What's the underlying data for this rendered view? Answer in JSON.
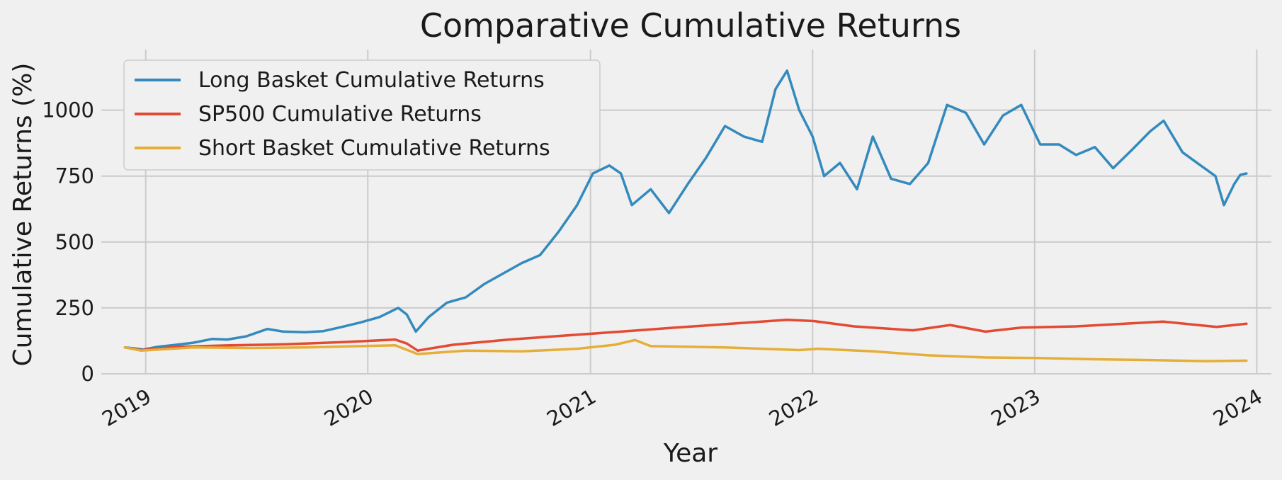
{
  "chart_data": {
    "type": "line",
    "title": "Comparative Cumulative Returns",
    "xlabel": "Year",
    "ylabel": "Cumulative Returns (%)",
    "x_ticks": [
      "2019",
      "2020",
      "2021",
      "2022",
      "2023",
      "2024"
    ],
    "y_ticks": [
      0,
      250,
      500,
      750,
      1000
    ],
    "xlim": [
      "2018-10-20",
      "2024-01-25"
    ],
    "ylim": [
      0,
      1230
    ],
    "grid": true,
    "legend_position": "top-left",
    "series": [
      {
        "name": "Long Basket Cumulative Returns",
        "color": "#348ABD",
        "points": [
          [
            "2018-11-28",
            100
          ],
          [
            "2018-12-15",
            96
          ],
          [
            "2018-12-28",
            92
          ],
          [
            "2019-01-20",
            102
          ],
          [
            "2019-02-20",
            110
          ],
          [
            "2019-03-20",
            118
          ],
          [
            "2019-04-20",
            132
          ],
          [
            "2019-05-15",
            130
          ],
          [
            "2019-06-15",
            142
          ],
          [
            "2019-07-20",
            170
          ],
          [
            "2019-08-15",
            160
          ],
          [
            "2019-09-20",
            158
          ],
          [
            "2019-10-20",
            162
          ],
          [
            "2019-11-20",
            178
          ],
          [
            "2019-12-20",
            195
          ],
          [
            "2020-01-20",
            215
          ],
          [
            "2020-02-20",
            250
          ],
          [
            "2020-03-05",
            225
          ],
          [
            "2020-03-20",
            160
          ],
          [
            "2020-04-10",
            215
          ],
          [
            "2020-05-10",
            270
          ],
          [
            "2020-06-10",
            290
          ],
          [
            "2020-07-10",
            340
          ],
          [
            "2020-08-10",
            380
          ],
          [
            "2020-09-10",
            420
          ],
          [
            "2020-10-10",
            450
          ],
          [
            "2020-11-10",
            540
          ],
          [
            "2020-12-10",
            640
          ],
          [
            "2021-01-05",
            760
          ],
          [
            "2021-02-01",
            790
          ],
          [
            "2021-02-20",
            760
          ],
          [
            "2021-03-10",
            640
          ],
          [
            "2021-04-10",
            700
          ],
          [
            "2021-05-10",
            610
          ],
          [
            "2021-06-10",
            720
          ],
          [
            "2021-07-10",
            820
          ],
          [
            "2021-08-10",
            940
          ],
          [
            "2021-09-10",
            900
          ],
          [
            "2021-10-10",
            880
          ],
          [
            "2021-11-01",
            1080
          ],
          [
            "2021-11-20",
            1150
          ],
          [
            "2021-12-10",
            1000
          ],
          [
            "2022-01-01",
            900
          ],
          [
            "2022-01-20",
            750
          ],
          [
            "2022-02-15",
            800
          ],
          [
            "2022-03-15",
            700
          ],
          [
            "2022-04-10",
            900
          ],
          [
            "2022-05-10",
            740
          ],
          [
            "2022-06-10",
            720
          ],
          [
            "2022-07-10",
            800
          ],
          [
            "2022-08-10",
            1020
          ],
          [
            "2022-09-10",
            990
          ],
          [
            "2022-10-10",
            870
          ],
          [
            "2022-11-10",
            980
          ],
          [
            "2022-12-10",
            1020
          ],
          [
            "2023-01-10",
            870
          ],
          [
            "2023-02-10",
            870
          ],
          [
            "2023-03-10",
            830
          ],
          [
            "2023-04-10",
            860
          ],
          [
            "2023-05-10",
            780
          ],
          [
            "2023-06-10",
            850
          ],
          [
            "2023-07-10",
            920
          ],
          [
            "2023-08-01",
            960
          ],
          [
            "2023-09-01",
            840
          ],
          [
            "2023-10-01",
            790
          ],
          [
            "2023-10-25",
            750
          ],
          [
            "2023-11-08",
            640
          ],
          [
            "2023-11-25",
            720
          ],
          [
            "2023-12-05",
            755
          ],
          [
            "2023-12-15",
            760
          ]
        ]
      },
      {
        "name": "SP500 Cumulative Returns",
        "color": "#E24A33",
        "points": [
          [
            "2018-11-28",
            100
          ],
          [
            "2018-12-24",
            90
          ],
          [
            "2019-02-20",
            102
          ],
          [
            "2019-05-20",
            108
          ],
          [
            "2019-08-20",
            112
          ],
          [
            "2019-11-20",
            120
          ],
          [
            "2020-02-15",
            130
          ],
          [
            "2020-03-05",
            115
          ],
          [
            "2020-03-23",
            88
          ],
          [
            "2020-05-20",
            110
          ],
          [
            "2020-08-20",
            130
          ],
          [
            "2020-11-20",
            145
          ],
          [
            "2021-02-20",
            160
          ],
          [
            "2021-05-20",
            175
          ],
          [
            "2021-08-20",
            190
          ],
          [
            "2021-11-20",
            205
          ],
          [
            "2022-01-03",
            200
          ],
          [
            "2022-03-10",
            180
          ],
          [
            "2022-06-15",
            165
          ],
          [
            "2022-08-15",
            185
          ],
          [
            "2022-10-12",
            160
          ],
          [
            "2022-12-10",
            175
          ],
          [
            "2023-03-10",
            180
          ],
          [
            "2023-07-31",
            198
          ],
          [
            "2023-10-27",
            178
          ],
          [
            "2023-12-15",
            190
          ]
        ]
      },
      {
        "name": "Short Basket Cumulative Returns",
        "color": "#E5AE38",
        "points": [
          [
            "2018-11-28",
            100
          ],
          [
            "2018-12-24",
            88
          ],
          [
            "2019-03-20",
            100
          ],
          [
            "2019-06-20",
            98
          ],
          [
            "2019-09-20",
            100
          ],
          [
            "2019-12-20",
            105
          ],
          [
            "2020-02-15",
            108
          ],
          [
            "2020-03-23",
            75
          ],
          [
            "2020-06-10",
            88
          ],
          [
            "2020-09-10",
            85
          ],
          [
            "2020-12-10",
            95
          ],
          [
            "2021-02-10",
            110
          ],
          [
            "2021-03-15",
            128
          ],
          [
            "2021-04-10",
            105
          ],
          [
            "2021-08-10",
            100
          ],
          [
            "2021-12-10",
            90
          ],
          [
            "2022-01-10",
            95
          ],
          [
            "2022-04-10",
            85
          ],
          [
            "2022-07-10",
            70
          ],
          [
            "2022-10-10",
            62
          ],
          [
            "2023-01-10",
            60
          ],
          [
            "2023-04-10",
            55
          ],
          [
            "2023-07-10",
            52
          ],
          [
            "2023-10-10",
            48
          ],
          [
            "2023-12-15",
            50
          ]
        ]
      }
    ]
  }
}
